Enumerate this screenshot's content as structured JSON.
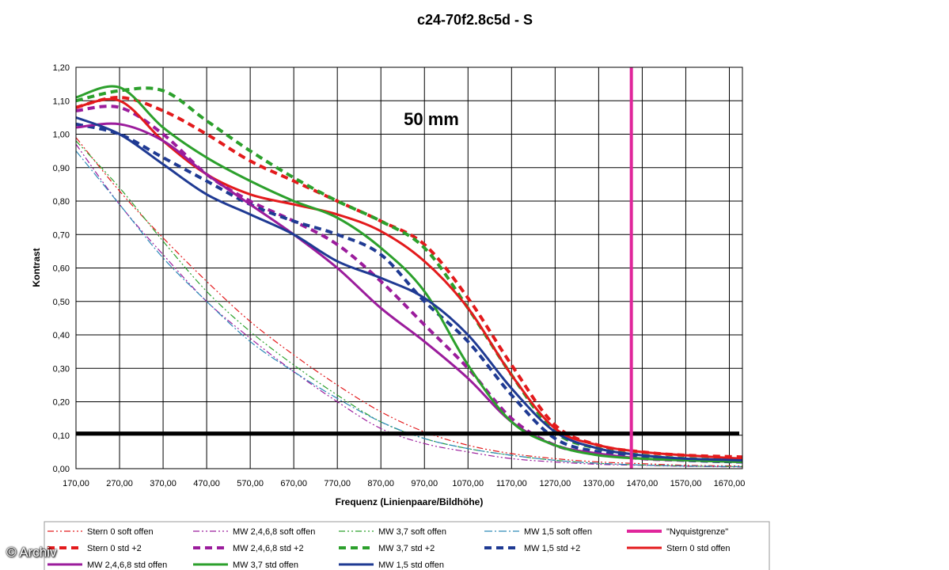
{
  "chart_data": {
    "type": "line",
    "title": "c24-70f2.8c5d - S",
    "xlabel": "Frequenz (Linienpaare/Bildhöhe)",
    "ylabel": "Kontrast",
    "xlim": [
      170,
      1700
    ],
    "ylim": [
      0,
      1.2
    ],
    "x_ticks": [
      "170,00",
      "270,00",
      "370,00",
      "470,00",
      "570,00",
      "670,00",
      "770,00",
      "870,00",
      "970,00",
      "1070,00",
      "1170,00",
      "1270,00",
      "1370,00",
      "1470,00",
      "1570,00",
      "1670,00"
    ],
    "y_ticks": [
      "0,00",
      "0,10",
      "0,20",
      "0,30",
      "0,40",
      "0,50",
      "0,60",
      "0,70",
      "0,80",
      "0,90",
      "1,00",
      "1,10",
      "1,20"
    ],
    "grid": true,
    "legend_position": "bottom",
    "annotation": "50 mm",
    "threshold": {
      "y": 0.105,
      "color": "#000000"
    },
    "vertical_marker": {
      "name": "\"Nyquistgrenze\"",
      "x": 1445,
      "color": "#e0269b"
    },
    "series": [
      {
        "name": "Stern 0 soft offen",
        "color": "#e31a1c",
        "style": "dashdotdot",
        "width": 1.2,
        "x": [
          170,
          270,
          370,
          470,
          570,
          670,
          770,
          870,
          970,
          1070,
          1170,
          1270,
          1370,
          1470,
          1570,
          1700
        ],
        "y": [
          0.99,
          0.83,
          0.69,
          0.56,
          0.44,
          0.34,
          0.25,
          0.17,
          0.11,
          0.07,
          0.045,
          0.03,
          0.02,
          0.015,
          0.01,
          0.008
        ]
      },
      {
        "name": "MW 2,4,6,8 soft offen",
        "color": "#9b1c9c",
        "style": "dashdotdot",
        "width": 1.2,
        "x": [
          170,
          270,
          370,
          470,
          570,
          670,
          770,
          870,
          970,
          1070,
          1170,
          1270,
          1370,
          1470,
          1570,
          1700
        ],
        "y": [
          0.97,
          0.79,
          0.64,
          0.5,
          0.39,
          0.29,
          0.2,
          0.12,
          0.075,
          0.05,
          0.03,
          0.02,
          0.013,
          0.01,
          0.007,
          0.005
        ]
      },
      {
        "name": "MW 3,7 soft offen",
        "color": "#2ca02c",
        "style": "dashdotdot",
        "width": 1.2,
        "x": [
          170,
          270,
          370,
          470,
          570,
          670,
          770,
          870,
          970,
          1070,
          1170,
          1270,
          1370,
          1470,
          1570,
          1700
        ],
        "y": [
          0.98,
          0.84,
          0.68,
          0.53,
          0.41,
          0.31,
          0.22,
          0.14,
          0.09,
          0.06,
          0.04,
          0.025,
          0.016,
          0.011,
          0.008,
          0.006
        ]
      },
      {
        "name": "MW 1,5 soft offen",
        "color": "#2e8ab8",
        "style": "dashdot",
        "width": 1.2,
        "x": [
          170,
          270,
          370,
          470,
          570,
          670,
          770,
          870,
          970,
          1070,
          1170,
          1270,
          1370,
          1470,
          1570,
          1700
        ],
        "y": [
          0.95,
          0.79,
          0.63,
          0.5,
          0.38,
          0.29,
          0.21,
          0.14,
          0.09,
          0.06,
          0.04,
          0.025,
          0.016,
          0.011,
          0.008,
          0.006
        ]
      },
      {
        "name": "Stern 0 std +2",
        "color": "#e31a1c",
        "style": "dash",
        "width": 4,
        "x": [
          170,
          270,
          370,
          470,
          570,
          670,
          770,
          870,
          970,
          1070,
          1170,
          1270,
          1370,
          1470,
          1570,
          1700
        ],
        "y": [
          1.08,
          1.11,
          1.07,
          1.0,
          0.92,
          0.86,
          0.8,
          0.74,
          0.67,
          0.51,
          0.31,
          0.13,
          0.07,
          0.05,
          0.04,
          0.035
        ]
      },
      {
        "name": "MW 2,4,6,8 std +2",
        "color": "#9b1c9c",
        "style": "dash",
        "width": 4,
        "x": [
          170,
          270,
          370,
          470,
          570,
          670,
          770,
          870,
          970,
          1070,
          1170,
          1270,
          1370,
          1470,
          1570,
          1700
        ],
        "y": [
          1.07,
          1.08,
          1.0,
          0.88,
          0.8,
          0.74,
          0.67,
          0.56,
          0.43,
          0.3,
          0.15,
          0.07,
          0.045,
          0.03,
          0.025,
          0.02
        ]
      },
      {
        "name": "MW 3,7 std +2",
        "color": "#2ca02c",
        "style": "dash",
        "width": 4,
        "x": [
          170,
          270,
          370,
          470,
          570,
          670,
          770,
          870,
          970,
          1070,
          1170,
          1270,
          1370,
          1470,
          1570,
          1700
        ],
        "y": [
          1.1,
          1.13,
          1.13,
          1.04,
          0.95,
          0.87,
          0.8,
          0.74,
          0.66,
          0.48,
          0.28,
          0.11,
          0.06,
          0.04,
          0.03,
          0.025
        ]
      },
      {
        "name": "MW 1,5 std +2",
        "color": "#1f3a93",
        "style": "dash",
        "width": 4,
        "x": [
          170,
          270,
          370,
          470,
          570,
          670,
          770,
          870,
          970,
          1070,
          1170,
          1270,
          1370,
          1470,
          1570,
          1700
        ],
        "y": [
          1.03,
          1.0,
          0.93,
          0.86,
          0.79,
          0.74,
          0.7,
          0.64,
          0.5,
          0.38,
          0.22,
          0.09,
          0.05,
          0.035,
          0.025,
          0.02
        ]
      },
      {
        "name": "Stern 0 std offen",
        "color": "#e31a1c",
        "style": "solid",
        "width": 3,
        "x": [
          170,
          270,
          370,
          470,
          570,
          670,
          770,
          870,
          970,
          1070,
          1170,
          1270,
          1370,
          1470,
          1570,
          1700
        ],
        "y": [
          1.08,
          1.1,
          0.98,
          0.88,
          0.82,
          0.79,
          0.76,
          0.71,
          0.62,
          0.48,
          0.28,
          0.12,
          0.07,
          0.05,
          0.04,
          0.03
        ]
      },
      {
        "name": "MW 2,4,6,8 std offen",
        "color": "#9b1c9c",
        "style": "solid",
        "width": 3,
        "x": [
          170,
          270,
          370,
          470,
          570,
          670,
          770,
          870,
          970,
          1070,
          1170,
          1270,
          1370,
          1470,
          1570,
          1700
        ],
        "y": [
          1.02,
          1.03,
          0.98,
          0.88,
          0.79,
          0.7,
          0.6,
          0.48,
          0.38,
          0.27,
          0.14,
          0.07,
          0.045,
          0.03,
          0.025,
          0.02
        ]
      },
      {
        "name": "MW 3,7 std offen",
        "color": "#2ca02c",
        "style": "solid",
        "width": 3,
        "x": [
          170,
          270,
          370,
          470,
          570,
          670,
          770,
          870,
          970,
          1070,
          1170,
          1270,
          1370,
          1470,
          1570,
          1700
        ],
        "y": [
          1.11,
          1.14,
          1.02,
          0.93,
          0.86,
          0.8,
          0.75,
          0.66,
          0.53,
          0.31,
          0.14,
          0.07,
          0.04,
          0.03,
          0.025,
          0.02
        ]
      },
      {
        "name": "MW 1,5 std offen",
        "color": "#1f3a93",
        "style": "solid",
        "width": 3,
        "x": [
          170,
          270,
          370,
          470,
          570,
          670,
          770,
          870,
          970,
          1070,
          1170,
          1270,
          1370,
          1470,
          1570,
          1700
        ],
        "y": [
          1.05,
          1.0,
          0.91,
          0.82,
          0.76,
          0.7,
          0.62,
          0.57,
          0.51,
          0.4,
          0.24,
          0.11,
          0.06,
          0.04,
          0.03,
          0.025
        ]
      }
    ]
  },
  "watermark": "© Archiv"
}
